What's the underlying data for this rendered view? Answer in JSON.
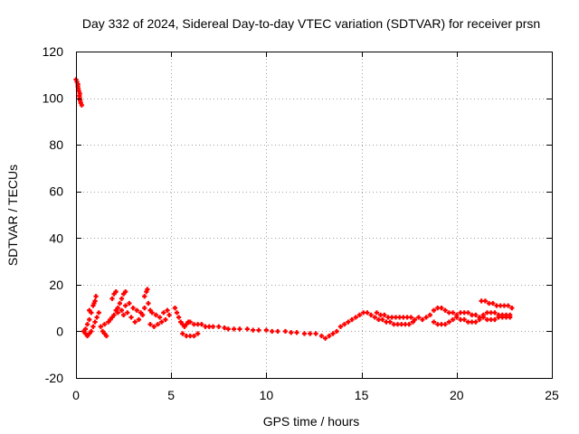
{
  "chart_data": {
    "type": "scatter",
    "title": "Day 332 of 2024, Sidereal Day-to-day VTEC variation (SDTVAR) for receiver prsn",
    "xlabel": "GPS time / hours",
    "ylabel": "SDTVAR / TECUs",
    "xlim": [
      0,
      25
    ],
    "ylim": [
      -20,
      120
    ],
    "xticks": [
      0,
      5,
      10,
      15,
      20,
      25
    ],
    "yticks": [
      -20,
      0,
      20,
      40,
      60,
      80,
      100,
      120
    ],
    "grid": true,
    "legend": null,
    "marker": "plus",
    "color": "#ff0000",
    "series": [
      {
        "name": "SDTVAR",
        "points": [
          [
            0.0,
            108
          ],
          [
            0.05,
            107
          ],
          [
            0.1,
            106
          ],
          [
            0.12,
            104
          ],
          [
            0.15,
            103
          ],
          [
            0.18,
            101
          ],
          [
            0.2,
            100
          ],
          [
            0.22,
            99
          ],
          [
            0.25,
            98
          ],
          [
            0.3,
            97
          ],
          [
            0.1,
            105
          ],
          [
            0.2,
            102
          ],
          [
            0.4,
            0
          ],
          [
            0.5,
            -1
          ],
          [
            0.6,
            -2
          ],
          [
            0.7,
            -1
          ],
          [
            0.8,
            0
          ],
          [
            0.9,
            2
          ],
          [
            1.0,
            4
          ],
          [
            1.1,
            6
          ],
          [
            1.2,
            8
          ],
          [
            0.5,
            1
          ],
          [
            0.6,
            3
          ],
          [
            0.7,
            5
          ],
          [
            0.8,
            8
          ],
          [
            0.9,
            11
          ],
          [
            1.0,
            13
          ],
          [
            1.05,
            15
          ],
          [
            0.7,
            9
          ],
          [
            0.95,
            12
          ],
          [
            1.3,
            2
          ],
          [
            1.4,
            0
          ],
          [
            1.5,
            -1
          ],
          [
            1.6,
            -2
          ],
          [
            1.5,
            3
          ],
          [
            1.7,
            4
          ],
          [
            1.8,
            5
          ],
          [
            1.9,
            6
          ],
          [
            2.0,
            7
          ],
          [
            2.1,
            9
          ],
          [
            2.2,
            10
          ],
          [
            2.3,
            12
          ],
          [
            2.4,
            14
          ],
          [
            2.5,
            16
          ],
          [
            2.6,
            17
          ],
          [
            1.9,
            14
          ],
          [
            2.0,
            16
          ],
          [
            2.1,
            17
          ],
          [
            2.2,
            8
          ],
          [
            2.4,
            9
          ],
          [
            2.6,
            11
          ],
          [
            2.8,
            12
          ],
          [
            3.0,
            10
          ],
          [
            3.2,
            9
          ],
          [
            3.4,
            8
          ],
          [
            3.6,
            10
          ],
          [
            3.8,
            12
          ],
          [
            3.6,
            15
          ],
          [
            3.7,
            17
          ],
          [
            3.75,
            18
          ],
          [
            3.5,
            7
          ],
          [
            3.3,
            5
          ],
          [
            3.1,
            4
          ],
          [
            2.9,
            6
          ],
          [
            2.7,
            8
          ],
          [
            2.5,
            7
          ],
          [
            3.9,
            9
          ],
          [
            4.0,
            8
          ],
          [
            4.2,
            7
          ],
          [
            4.4,
            6
          ],
          [
            4.6,
            8
          ],
          [
            4.8,
            9
          ],
          [
            4.5,
            4
          ],
          [
            4.3,
            3
          ],
          [
            4.1,
            2
          ],
          [
            3.9,
            3
          ],
          [
            4.7,
            5
          ],
          [
            4.9,
            7
          ],
          [
            5.2,
            10
          ],
          [
            5.3,
            8
          ],
          [
            5.4,
            6
          ],
          [
            5.5,
            4
          ],
          [
            5.6,
            3
          ],
          [
            5.7,
            2
          ],
          [
            5.8,
            3
          ],
          [
            5.9,
            4
          ],
          [
            6.0,
            4
          ],
          [
            6.2,
            3
          ],
          [
            6.4,
            3
          ],
          [
            6.6,
            3
          ],
          [
            6.8,
            2
          ],
          [
            7.0,
            2
          ],
          [
            5.6,
            -1
          ],
          [
            5.8,
            -2
          ],
          [
            6.0,
            -2
          ],
          [
            6.2,
            -2
          ],
          [
            6.4,
            -1
          ],
          [
            7.2,
            2
          ],
          [
            7.5,
            2
          ],
          [
            7.8,
            1.5
          ],
          [
            8.0,
            1
          ],
          [
            8.3,
            1
          ],
          [
            8.6,
            1
          ],
          [
            9.0,
            1
          ],
          [
            9.3,
            0.5
          ],
          [
            9.6,
            0.5
          ],
          [
            10.0,
            0.5
          ],
          [
            10.3,
            0
          ],
          [
            10.6,
            0
          ],
          [
            11.0,
            0
          ],
          [
            11.3,
            -0.5
          ],
          [
            11.6,
            -0.5
          ],
          [
            12.0,
            -1
          ],
          [
            12.3,
            -1
          ],
          [
            12.6,
            -1
          ],
          [
            12.9,
            -2
          ],
          [
            13.1,
            -3
          ],
          [
            13.3,
            -2
          ],
          [
            13.5,
            -1
          ],
          [
            13.7,
            0
          ],
          [
            13.9,
            2
          ],
          [
            14.1,
            3
          ],
          [
            14.3,
            4
          ],
          [
            14.5,
            5
          ],
          [
            14.7,
            6
          ],
          [
            14.9,
            7
          ],
          [
            15.1,
            8
          ],
          [
            15.3,
            8
          ],
          [
            15.5,
            7
          ],
          [
            15.7,
            6
          ],
          [
            15.9,
            5
          ],
          [
            16.1,
            5
          ],
          [
            16.3,
            4
          ],
          [
            16.5,
            4
          ],
          [
            16.7,
            3
          ],
          [
            16.9,
            3
          ],
          [
            17.1,
            3
          ],
          [
            17.3,
            3
          ],
          [
            17.5,
            3
          ],
          [
            17.7,
            4
          ],
          [
            15.8,
            8
          ],
          [
            16.0,
            7
          ],
          [
            16.2,
            7
          ],
          [
            16.4,
            6
          ],
          [
            16.6,
            6
          ],
          [
            16.8,
            6
          ],
          [
            17.0,
            6
          ],
          [
            17.2,
            6
          ],
          [
            17.4,
            6
          ],
          [
            17.6,
            6
          ],
          [
            17.8,
            5
          ],
          [
            18.0,
            6
          ],
          [
            18.2,
            5
          ],
          [
            18.4,
            6
          ],
          [
            18.6,
            7
          ],
          [
            18.8,
            9
          ],
          [
            19.0,
            10
          ],
          [
            19.2,
            10
          ],
          [
            19.4,
            9
          ],
          [
            19.6,
            8
          ],
          [
            19.8,
            8
          ],
          [
            20.0,
            7
          ],
          [
            18.8,
            4
          ],
          [
            19.0,
            3
          ],
          [
            19.2,
            3
          ],
          [
            19.4,
            3
          ],
          [
            19.6,
            4
          ],
          [
            19.8,
            5
          ],
          [
            20.0,
            6
          ],
          [
            20.2,
            8
          ],
          [
            20.4,
            8
          ],
          [
            20.6,
            8
          ],
          [
            20.8,
            7
          ],
          [
            21.0,
            7
          ],
          [
            21.2,
            6
          ],
          [
            21.4,
            6
          ],
          [
            21.6,
            5
          ],
          [
            21.8,
            5
          ],
          [
            22.0,
            5
          ],
          [
            22.2,
            6
          ],
          [
            22.4,
            6
          ],
          [
            22.6,
            6
          ],
          [
            22.8,
            6
          ],
          [
            20.2,
            5
          ],
          [
            20.4,
            5
          ],
          [
            20.6,
            4
          ],
          [
            20.8,
            4
          ],
          [
            21.0,
            4
          ],
          [
            21.2,
            5
          ],
          [
            21.4,
            7
          ],
          [
            21.6,
            8
          ],
          [
            21.8,
            8
          ],
          [
            22.0,
            8
          ],
          [
            22.2,
            7
          ],
          [
            22.4,
            7
          ],
          [
            22.6,
            7
          ],
          [
            22.8,
            7
          ],
          [
            21.3,
            13
          ],
          [
            21.5,
            13
          ],
          [
            21.7,
            12
          ],
          [
            21.9,
            12
          ],
          [
            22.1,
            11
          ],
          [
            22.3,
            11
          ],
          [
            22.5,
            11
          ],
          [
            22.7,
            11
          ],
          [
            22.9,
            10
          ]
        ]
      }
    ]
  }
}
